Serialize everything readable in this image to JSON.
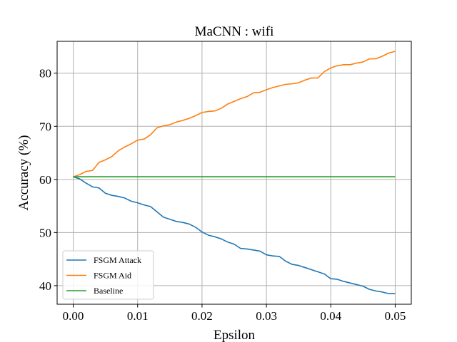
{
  "chart_data": {
    "type": "line",
    "title": "MaCNN : wifi",
    "xlabel": "Epsilon",
    "ylabel": "Accuracy (%)",
    "xlim": [
      -0.0025,
      0.0525
    ],
    "ylim": [
      36.5,
      86.0
    ],
    "xticks": [
      0.0,
      0.01,
      0.02,
      0.03,
      0.04,
      0.05
    ],
    "xtick_labels": [
      "0.00",
      "0.01",
      "0.02",
      "0.03",
      "0.04",
      "0.05"
    ],
    "yticks": [
      40,
      50,
      60,
      70,
      80
    ],
    "ytick_labels": [
      "40",
      "50",
      "60",
      "70",
      "80"
    ],
    "grid": true,
    "legend_position": "lower-left",
    "x": [
      0.0,
      0.001,
      0.002,
      0.003,
      0.004,
      0.005,
      0.006,
      0.007,
      0.008,
      0.009,
      0.01,
      0.011,
      0.012,
      0.013,
      0.014,
      0.015,
      0.016,
      0.017,
      0.018,
      0.019,
      0.02,
      0.021,
      0.022,
      0.023,
      0.024,
      0.025,
      0.026,
      0.027,
      0.028,
      0.029,
      0.03,
      0.031,
      0.032,
      0.033,
      0.034,
      0.035,
      0.036,
      0.037,
      0.038,
      0.039,
      0.04,
      0.041,
      0.042,
      0.043,
      0.044,
      0.045,
      0.046,
      0.047,
      0.048,
      0.049,
      0.05
    ],
    "series": [
      {
        "name": "FSGM Attack",
        "color": "#1f77b4",
        "values": [
          60.5,
          60.1,
          59.3,
          58.6,
          58.4,
          57.4,
          57.0,
          56.8,
          56.5,
          55.9,
          55.6,
          55.2,
          54.9,
          53.9,
          52.9,
          52.5,
          52.1,
          51.9,
          51.6,
          51.0,
          50.1,
          49.5,
          49.2,
          48.8,
          48.2,
          47.8,
          47.0,
          46.9,
          46.7,
          46.5,
          45.8,
          45.6,
          45.5,
          44.6,
          44.0,
          43.8,
          43.4,
          43.0,
          42.6,
          42.2,
          41.3,
          41.2,
          40.8,
          40.5,
          40.2,
          39.9,
          39.3,
          39.0,
          38.8,
          38.5,
          38.5
        ]
      },
      {
        "name": "FSGM Aid",
        "color": "#ff7f0e",
        "values": [
          60.5,
          60.9,
          61.5,
          61.7,
          63.2,
          63.7,
          64.3,
          65.4,
          66.1,
          66.7,
          67.4,
          67.6,
          68.4,
          69.7,
          70.1,
          70.3,
          70.8,
          71.1,
          71.5,
          72.0,
          72.6,
          72.8,
          72.9,
          73.4,
          74.2,
          74.7,
          75.2,
          75.6,
          76.3,
          76.4,
          76.9,
          77.3,
          77.6,
          77.9,
          78.0,
          78.2,
          78.7,
          79.1,
          79.1,
          80.3,
          81.0,
          81.4,
          81.6,
          81.6,
          81.9,
          82.1,
          82.7,
          82.7,
          83.2,
          83.8,
          84.1
        ]
      },
      {
        "name": "Baseline",
        "color": "#2ca02c",
        "values": [
          60.5,
          60.5,
          60.5,
          60.5,
          60.5,
          60.5,
          60.5,
          60.5,
          60.5,
          60.5,
          60.5,
          60.5,
          60.5,
          60.5,
          60.5,
          60.5,
          60.5,
          60.5,
          60.5,
          60.5,
          60.5,
          60.5,
          60.5,
          60.5,
          60.5,
          60.5,
          60.5,
          60.5,
          60.5,
          60.5,
          60.5,
          60.5,
          60.5,
          60.5,
          60.5,
          60.5,
          60.5,
          60.5,
          60.5,
          60.5,
          60.5,
          60.5,
          60.5,
          60.5,
          60.5,
          60.5,
          60.5,
          60.5,
          60.5,
          60.5,
          60.5
        ]
      }
    ]
  }
}
